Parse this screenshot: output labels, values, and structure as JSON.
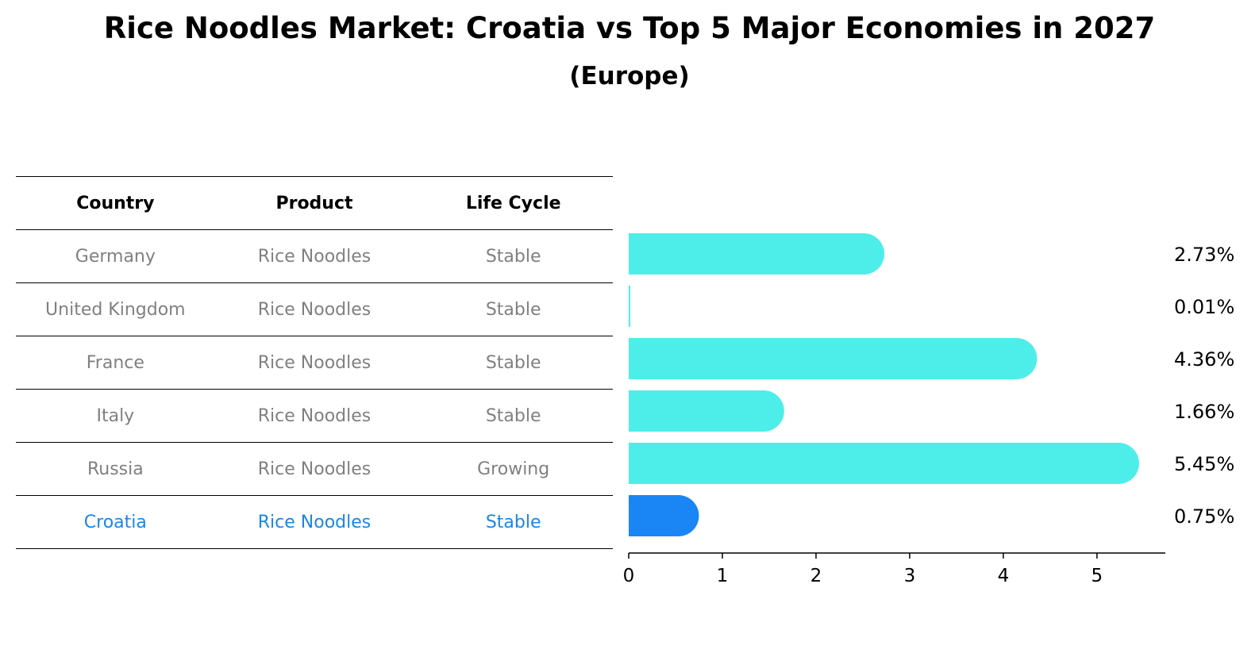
{
  "title": "Rice Noodles Market: Croatia vs Top 5 Major Economies in 2027",
  "subtitle": "(Europe)",
  "table": {
    "headers": [
      "Country",
      "Product",
      "Life Cycle"
    ],
    "rows": [
      [
        "Germany",
        "Rice Noodles",
        "Stable"
      ],
      [
        "United Kingdom",
        "Rice Noodles",
        "Stable"
      ],
      [
        "France",
        "Rice Noodles",
        "Stable"
      ],
      [
        "Italy",
        "Rice Noodles",
        "Stable"
      ],
      [
        "Russia",
        "Rice Noodles",
        "Growing"
      ],
      [
        "Croatia",
        "Rice Noodles",
        "Stable"
      ]
    ],
    "highlight_row": 5
  },
  "colors": {
    "bar": "#4deee9",
    "highlight": "#1a86f5",
    "highlight_text": "#1a86e8",
    "muted_text": "#808080"
  },
  "chart_data": {
    "type": "bar",
    "orientation": "horizontal",
    "categories": [
      "Germany",
      "United Kingdom",
      "France",
      "Italy",
      "Russia",
      "Croatia"
    ],
    "values": [
      2.73,
      0.01,
      4.36,
      1.66,
      5.45,
      0.75
    ],
    "value_labels": [
      "2.73%",
      "0.01%",
      "4.36%",
      "1.66%",
      "5.45%",
      "0.75%"
    ],
    "xticks": [
      0,
      1,
      2,
      3,
      4,
      5
    ],
    "xlim": [
      0,
      5.73
    ],
    "highlight_category": "Croatia"
  }
}
